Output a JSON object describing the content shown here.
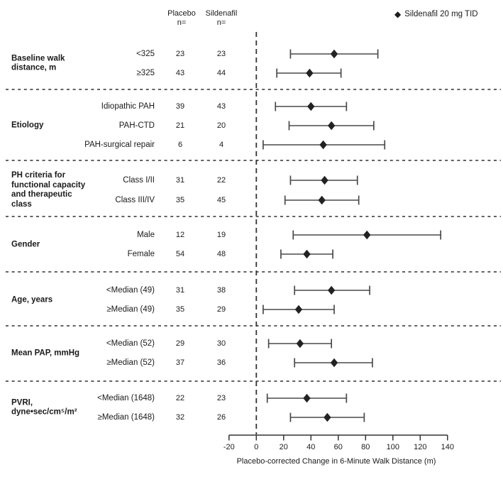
{
  "columns": {
    "placebo": "Placebo\nn=",
    "sildenafil": "Sildenafil\nn="
  },
  "chart_data": {
    "type": "forest",
    "legend": "Sildenafil 20 mg TID",
    "legend_marker": "diamond",
    "xlabel": "Placebo-corrected Change in 6-Minute Walk Distance (m)",
    "xlim": [
      -20,
      140
    ],
    "x_ticks": [
      -20,
      0,
      20,
      40,
      60,
      80,
      100,
      120,
      140
    ],
    "reference_line_x": 0,
    "column_headers": [
      "Placebo n=",
      "Sildenafil n="
    ],
    "groups": [
      {
        "label": "Baseline walk\ndistance, m",
        "rows": [
          {
            "label": "<325",
            "placebo_n": 23,
            "sildenafil_n": 23,
            "estimate": 57,
            "ci_low": 25,
            "ci_high": 89
          },
          {
            "label": "≥325",
            "placebo_n": 43,
            "sildenafil_n": 44,
            "estimate": 39,
            "ci_low": 15,
            "ci_high": 62
          }
        ]
      },
      {
        "label": "Etiology",
        "rows": [
          {
            "label": "Idiopathic PAH",
            "placebo_n": 39,
            "sildenafil_n": 43,
            "estimate": 40,
            "ci_low": 14,
            "ci_high": 66
          },
          {
            "label": "PAH-CTD",
            "placebo_n": 21,
            "sildenafil_n": 20,
            "estimate": 55,
            "ci_low": 24,
            "ci_high": 86
          },
          {
            "label": "PAH-surgical repair",
            "placebo_n": 6,
            "sildenafil_n": 4,
            "estimate": 49,
            "ci_low": 5,
            "ci_high": 94
          }
        ]
      },
      {
        "label": "PH criteria for\nfunctional capacity\nand therapeutic\nclass",
        "rows": [
          {
            "label": "Class I/II",
            "placebo_n": 31,
            "sildenafil_n": 22,
            "estimate": 50,
            "ci_low": 25,
            "ci_high": 74
          },
          {
            "label": "Class III/IV",
            "placebo_n": 35,
            "sildenafil_n": 45,
            "estimate": 48,
            "ci_low": 21,
            "ci_high": 75
          }
        ]
      },
      {
        "label": "Gender",
        "rows": [
          {
            "label": "Male",
            "placebo_n": 12,
            "sildenafil_n": 19,
            "estimate": 81,
            "ci_low": 27,
            "ci_high": 135
          },
          {
            "label": "Female",
            "placebo_n": 54,
            "sildenafil_n": 48,
            "estimate": 37,
            "ci_low": 18,
            "ci_high": 56
          }
        ]
      },
      {
        "label": "Age, years",
        "rows": [
          {
            "label": "<Median (49)",
            "placebo_n": 31,
            "sildenafil_n": 38,
            "estimate": 55,
            "ci_low": 28,
            "ci_high": 83
          },
          {
            "label": "≥Median (49)",
            "placebo_n": 35,
            "sildenafil_n": 29,
            "estimate": 31,
            "ci_low": 5,
            "ci_high": 57
          }
        ]
      },
      {
        "label": "Mean PAP, mmHg",
        "rows": [
          {
            "label": "<Median (52)",
            "placebo_n": 29,
            "sildenafil_n": 30,
            "estimate": 32,
            "ci_low": 9,
            "ci_high": 55
          },
          {
            "label": "≥Median (52)",
            "placebo_n": 37,
            "sildenafil_n": 36,
            "estimate": 57,
            "ci_low": 28,
            "ci_high": 85
          }
        ]
      },
      {
        "label": "PVRI,\ndyne•sec/cm⁵/m²",
        "rows": [
          {
            "label": "<Median (1648)",
            "placebo_n": 22,
            "sildenafil_n": 23,
            "estimate": 37,
            "ci_low": 8,
            "ci_high": 66
          },
          {
            "label": "≥Median (1648)",
            "placebo_n": 32,
            "sildenafil_n": 26,
            "estimate": 52,
            "ci_low": 25,
            "ci_high": 79
          }
        ]
      }
    ]
  }
}
